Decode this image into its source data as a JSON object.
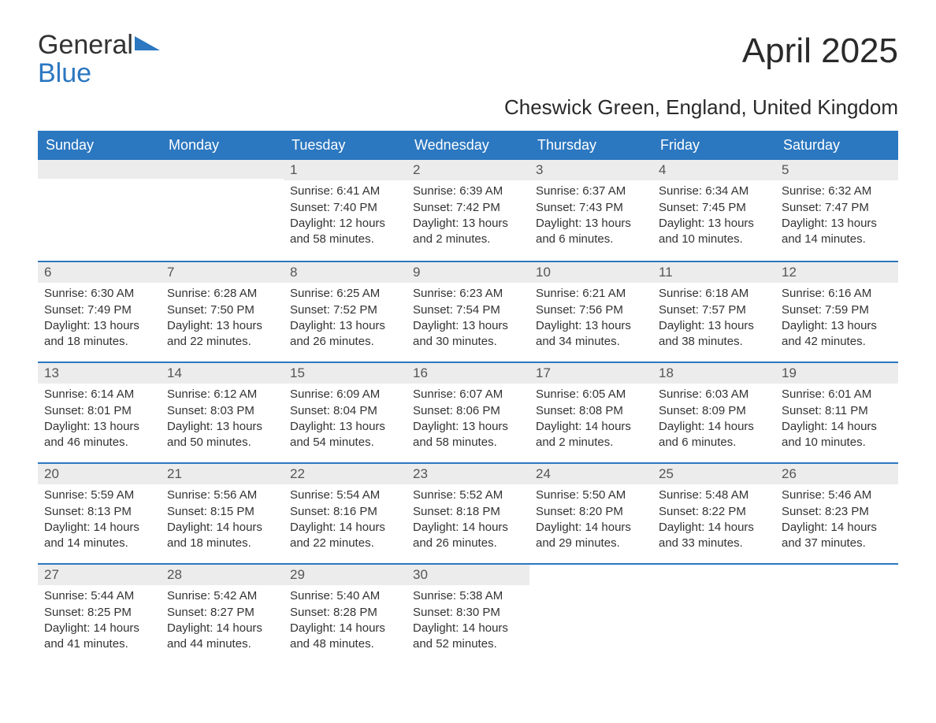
{
  "logo": {
    "text_general": "General",
    "text_blue": "Blue"
  },
  "title": "April 2025",
  "subtitle": "Cheswick Green, England, United Kingdom",
  "colors": {
    "header_bg": "#2b77c0",
    "header_text": "#ffffff",
    "daynum_bg": "#ececec",
    "daynum_text": "#555555",
    "body_text": "#333333",
    "rule": "#2b77c0",
    "page_bg": "#ffffff"
  },
  "weekdays": [
    "Sunday",
    "Monday",
    "Tuesday",
    "Wednesday",
    "Thursday",
    "Friday",
    "Saturday"
  ],
  "weeks": [
    [
      {
        "blank": true
      },
      {
        "blank": true
      },
      {
        "num": "1",
        "sunrise": "Sunrise: 6:41 AM",
        "sunset": "Sunset: 7:40 PM",
        "day1": "Daylight: 12 hours",
        "day2": "and 58 minutes."
      },
      {
        "num": "2",
        "sunrise": "Sunrise: 6:39 AM",
        "sunset": "Sunset: 7:42 PM",
        "day1": "Daylight: 13 hours",
        "day2": "and 2 minutes."
      },
      {
        "num": "3",
        "sunrise": "Sunrise: 6:37 AM",
        "sunset": "Sunset: 7:43 PM",
        "day1": "Daylight: 13 hours",
        "day2": "and 6 minutes."
      },
      {
        "num": "4",
        "sunrise": "Sunrise: 6:34 AM",
        "sunset": "Sunset: 7:45 PM",
        "day1": "Daylight: 13 hours",
        "day2": "and 10 minutes."
      },
      {
        "num": "5",
        "sunrise": "Sunrise: 6:32 AM",
        "sunset": "Sunset: 7:47 PM",
        "day1": "Daylight: 13 hours",
        "day2": "and 14 minutes."
      }
    ],
    [
      {
        "num": "6",
        "sunrise": "Sunrise: 6:30 AM",
        "sunset": "Sunset: 7:49 PM",
        "day1": "Daylight: 13 hours",
        "day2": "and 18 minutes."
      },
      {
        "num": "7",
        "sunrise": "Sunrise: 6:28 AM",
        "sunset": "Sunset: 7:50 PM",
        "day1": "Daylight: 13 hours",
        "day2": "and 22 minutes."
      },
      {
        "num": "8",
        "sunrise": "Sunrise: 6:25 AM",
        "sunset": "Sunset: 7:52 PM",
        "day1": "Daylight: 13 hours",
        "day2": "and 26 minutes."
      },
      {
        "num": "9",
        "sunrise": "Sunrise: 6:23 AM",
        "sunset": "Sunset: 7:54 PM",
        "day1": "Daylight: 13 hours",
        "day2": "and 30 minutes."
      },
      {
        "num": "10",
        "sunrise": "Sunrise: 6:21 AM",
        "sunset": "Sunset: 7:56 PM",
        "day1": "Daylight: 13 hours",
        "day2": "and 34 minutes."
      },
      {
        "num": "11",
        "sunrise": "Sunrise: 6:18 AM",
        "sunset": "Sunset: 7:57 PM",
        "day1": "Daylight: 13 hours",
        "day2": "and 38 minutes."
      },
      {
        "num": "12",
        "sunrise": "Sunrise: 6:16 AM",
        "sunset": "Sunset: 7:59 PM",
        "day1": "Daylight: 13 hours",
        "day2": "and 42 minutes."
      }
    ],
    [
      {
        "num": "13",
        "sunrise": "Sunrise: 6:14 AM",
        "sunset": "Sunset: 8:01 PM",
        "day1": "Daylight: 13 hours",
        "day2": "and 46 minutes."
      },
      {
        "num": "14",
        "sunrise": "Sunrise: 6:12 AM",
        "sunset": "Sunset: 8:03 PM",
        "day1": "Daylight: 13 hours",
        "day2": "and 50 minutes."
      },
      {
        "num": "15",
        "sunrise": "Sunrise: 6:09 AM",
        "sunset": "Sunset: 8:04 PM",
        "day1": "Daylight: 13 hours",
        "day2": "and 54 minutes."
      },
      {
        "num": "16",
        "sunrise": "Sunrise: 6:07 AM",
        "sunset": "Sunset: 8:06 PM",
        "day1": "Daylight: 13 hours",
        "day2": "and 58 minutes."
      },
      {
        "num": "17",
        "sunrise": "Sunrise: 6:05 AM",
        "sunset": "Sunset: 8:08 PM",
        "day1": "Daylight: 14 hours",
        "day2": "and 2 minutes."
      },
      {
        "num": "18",
        "sunrise": "Sunrise: 6:03 AM",
        "sunset": "Sunset: 8:09 PM",
        "day1": "Daylight: 14 hours",
        "day2": "and 6 minutes."
      },
      {
        "num": "19",
        "sunrise": "Sunrise: 6:01 AM",
        "sunset": "Sunset: 8:11 PM",
        "day1": "Daylight: 14 hours",
        "day2": "and 10 minutes."
      }
    ],
    [
      {
        "num": "20",
        "sunrise": "Sunrise: 5:59 AM",
        "sunset": "Sunset: 8:13 PM",
        "day1": "Daylight: 14 hours",
        "day2": "and 14 minutes."
      },
      {
        "num": "21",
        "sunrise": "Sunrise: 5:56 AM",
        "sunset": "Sunset: 8:15 PM",
        "day1": "Daylight: 14 hours",
        "day2": "and 18 minutes."
      },
      {
        "num": "22",
        "sunrise": "Sunrise: 5:54 AM",
        "sunset": "Sunset: 8:16 PM",
        "day1": "Daylight: 14 hours",
        "day2": "and 22 minutes."
      },
      {
        "num": "23",
        "sunrise": "Sunrise: 5:52 AM",
        "sunset": "Sunset: 8:18 PM",
        "day1": "Daylight: 14 hours",
        "day2": "and 26 minutes."
      },
      {
        "num": "24",
        "sunrise": "Sunrise: 5:50 AM",
        "sunset": "Sunset: 8:20 PM",
        "day1": "Daylight: 14 hours",
        "day2": "and 29 minutes."
      },
      {
        "num": "25",
        "sunrise": "Sunrise: 5:48 AM",
        "sunset": "Sunset: 8:22 PM",
        "day1": "Daylight: 14 hours",
        "day2": "and 33 minutes."
      },
      {
        "num": "26",
        "sunrise": "Sunrise: 5:46 AM",
        "sunset": "Sunset: 8:23 PM",
        "day1": "Daylight: 14 hours",
        "day2": "and 37 minutes."
      }
    ],
    [
      {
        "num": "27",
        "sunrise": "Sunrise: 5:44 AM",
        "sunset": "Sunset: 8:25 PM",
        "day1": "Daylight: 14 hours",
        "day2": "and 41 minutes."
      },
      {
        "num": "28",
        "sunrise": "Sunrise: 5:42 AM",
        "sunset": "Sunset: 8:27 PM",
        "day1": "Daylight: 14 hours",
        "day2": "and 44 minutes."
      },
      {
        "num": "29",
        "sunrise": "Sunrise: 5:40 AM",
        "sunset": "Sunset: 8:28 PM",
        "day1": "Daylight: 14 hours",
        "day2": "and 48 minutes."
      },
      {
        "num": "30",
        "sunrise": "Sunrise: 5:38 AM",
        "sunset": "Sunset: 8:30 PM",
        "day1": "Daylight: 14 hours",
        "day2": "and 52 minutes."
      },
      {
        "blank": true,
        "nobar": true
      },
      {
        "blank": true,
        "nobar": true
      },
      {
        "blank": true,
        "nobar": true
      }
    ]
  ]
}
